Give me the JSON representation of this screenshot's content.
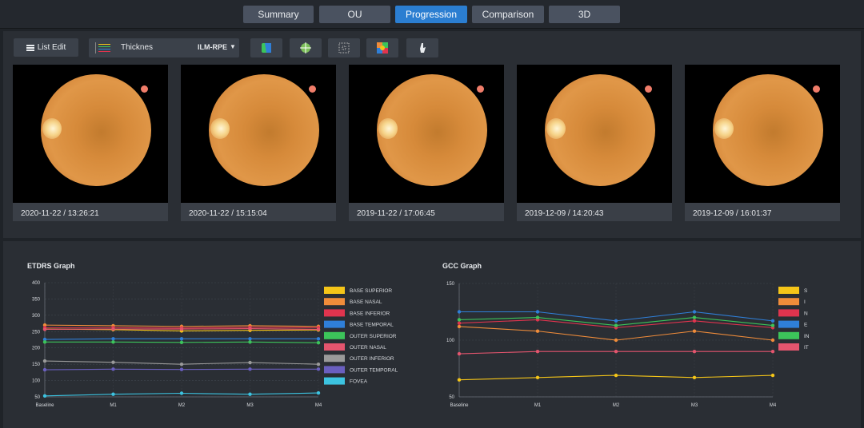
{
  "tabs": [
    {
      "label": "Summary",
      "active": false
    },
    {
      "label": "OU",
      "active": false
    },
    {
      "label": "Progression",
      "active": true
    },
    {
      "label": "Comparison",
      "active": false
    },
    {
      "label": "3D",
      "active": false
    }
  ],
  "toolbar": {
    "list_edit_label": "List Edit",
    "thickness_label": "Thicknes",
    "layer_value": "ILM-RPE",
    "view_icons": [
      "map-icon",
      "grid-target-icon",
      "dot-grid-icon",
      "color-map-icon",
      "hand-icon"
    ]
  },
  "images": [
    {
      "caption": "2020-11-22 / 13:26:21"
    },
    {
      "caption": "2020-11-22 / 15:15:04"
    },
    {
      "caption": "2019-11-22 / 17:06:45"
    },
    {
      "caption": "2019-12-09 / 14:20:43"
    },
    {
      "caption": "2019-12-09 / 16:01:37"
    }
  ],
  "colors": {
    "accent": "#2b7ed1",
    "marker": "#f07d6a"
  },
  "chart_data": [
    {
      "type": "line",
      "title": "ETDRS Graph",
      "categories": [
        "Baseline",
        "M1",
        "M2",
        "M3",
        "M4"
      ],
      "ylim": [
        50,
        400
      ],
      "yticks": [
        400,
        350,
        300,
        250,
        200,
        150,
        100,
        50
      ],
      "legend": "right",
      "series": [
        {
          "name": "BASE SUPERIOR",
          "color": "#f5c518",
          "values": [
            258,
            256,
            252,
            254,
            255
          ]
        },
        {
          "name": "BASE NASAL",
          "color": "#f08c3a",
          "values": [
            270,
            268,
            266,
            268,
            266
          ]
        },
        {
          "name": "BASE INFERIOR",
          "color": "#e0344e",
          "values": [
            262,
            262,
            261,
            263,
            262
          ]
        },
        {
          "name": "BASE TEMPORAL",
          "color": "#2f7fd8",
          "values": [
            226,
            228,
            228,
            228,
            228
          ]
        },
        {
          "name": "OUTER SUPERIOR",
          "color": "#3cc45a",
          "values": [
            218,
            218,
            217,
            218,
            216
          ]
        },
        {
          "name": "OUTER NASAL",
          "color": "#e4556e",
          "values": [
            257,
            258,
            258,
            259,
            257
          ]
        },
        {
          "name": "OUTER INFERIOR",
          "color": "#9a9a9a",
          "values": [
            160,
            156,
            150,
            155,
            150
          ]
        },
        {
          "name": "OUTER TEMPORAL",
          "color": "#6a5fbf",
          "values": [
            133,
            135,
            134,
            135,
            135
          ]
        },
        {
          "name": "FOVEA",
          "color": "#3cc3e0",
          "values": [
            53,
            58,
            61,
            58,
            62
          ]
        }
      ]
    },
    {
      "type": "line",
      "title": "GCC Graph",
      "categories": [
        "Baseline",
        "M1",
        "M2",
        "M3",
        "M4"
      ],
      "ylim": [
        50,
        150
      ],
      "yticks": [
        150,
        100,
        50
      ],
      "legend": "right",
      "series": [
        {
          "name": "S",
          "color": "#f5c518",
          "values": [
            65,
            67,
            69,
            67,
            69
          ]
        },
        {
          "name": "I",
          "color": "#f08c3a",
          "values": [
            112,
            108,
            100,
            108,
            100
          ]
        },
        {
          "name": "N",
          "color": "#e0344e",
          "values": [
            115,
            118,
            111,
            117,
            111
          ]
        },
        {
          "name": "E",
          "color": "#2f7fd8",
          "values": [
            125,
            125,
            117,
            125,
            117
          ]
        },
        {
          "name": "IN",
          "color": "#3cc45a",
          "values": [
            118,
            120,
            113,
            120,
            113
          ]
        },
        {
          "name": "IT",
          "color": "#e4556e",
          "values": [
            88,
            90,
            90,
            90,
            90
          ]
        }
      ]
    }
  ]
}
